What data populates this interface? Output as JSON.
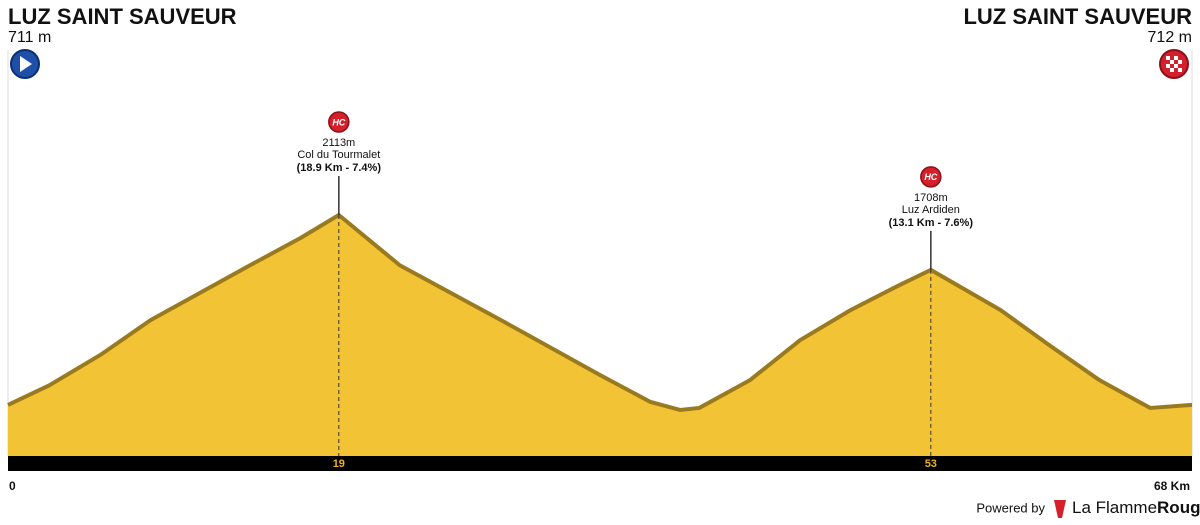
{
  "chart_data": {
    "type": "area",
    "start": {
      "name": "LUZ SAINT SAUVEUR",
      "altitude": {
        "value": 711,
        "label": "711 m"
      }
    },
    "finish": {
      "name": "LUZ SAINT SAUVEUR",
      "altitude": {
        "value": 712,
        "label": "712 m"
      }
    },
    "x": [
      0,
      2.4,
      5.3,
      8.2,
      13.9,
      16.8,
      19,
      22.5,
      28.3,
      34,
      36.9,
      38.6,
      39.7,
      42.6,
      45.5,
      48.4,
      51.2,
      53,
      57,
      59.8,
      62.7,
      65.6,
      68
    ],
    "series": [
      {
        "color": "#f2c335",
        "values": [
          711,
          858,
          1080,
          1338,
          1742,
          1943,
          2113,
          1742,
          1338,
          932,
          733,
          674,
          689,
          893,
          1190,
          1412,
          1596,
          1708,
          1412,
          1153,
          893,
          689,
          712
        ]
      }
    ],
    "xlim": [
      0,
      68
    ],
    "xticks": [
      0,
      19,
      53,
      {
        "value": 68,
        "label": "68 Km"
      }
    ],
    "climbs": [
      {
        "category": "HC",
        "summit": {
          "value": 2113,
          "label": "2113m"
        },
        "name": "Col du Tourmalet",
        "detail": "(18.9 Km - 7.4%)"
      },
      {
        "category": "HC",
        "summit": {
          "value": 1708,
          "label": "1708m"
        },
        "name": "Luz Ardiden",
        "detail": "(13.1 Km - 7.6%)"
      }
    ],
    "footer": {
      "powered": "Powered by",
      "brand": "La Flamme",
      "brand_bold": "Rouge"
    }
  }
}
